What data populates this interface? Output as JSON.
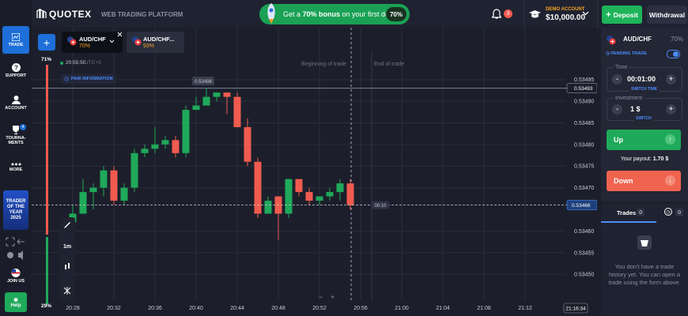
{
  "header": {
    "brand": "QUOTEX",
    "subtitle": "WEB TRADING PLATFORM",
    "promo_prefix": "Get a ",
    "promo_bold": "70% bonus",
    "promo_suffix": " on your first deposit!",
    "promo_badge": "70%",
    "notifications": "3",
    "account_label": "DEMO ACCOUNT",
    "balance": "$10,000.00",
    "deposit": "Deposit",
    "withdrawal": "Withdrawal"
  },
  "sidebar": {
    "trade": "TRADE",
    "support": "SUPPORT",
    "account": "ACCOUNT",
    "tournaments": "TOURNA-MENTS",
    "tournaments_badge": "4",
    "more": "MORE",
    "banner": "TRADER OF THE YEAR 2025",
    "join": "JOIN US",
    "help": "Help"
  },
  "tabs": [
    {
      "pair": "AUD/CHF",
      "payout": "70%"
    },
    {
      "pair": "AUD/CHF...",
      "payout": "93%"
    }
  ],
  "info": {
    "time": "20:55:50",
    "timezone": "UTC+3",
    "pair_information": "PAIR INFORMATION"
  },
  "sentiment": {
    "values": [
      71,
      29
    ],
    "value_labels": [
      "71%",
      "29%"
    ],
    "colors": [
      "#f05b4f",
      "#1fa95a"
    ]
  },
  "chart_data": {
    "type": "candlestick",
    "x": [
      "20:28",
      "20:29",
      "20:30",
      "20:31",
      "20:32",
      "20:33",
      "20:34",
      "20:35",
      "20:36",
      "20:37",
      "20:38",
      "20:39",
      "20:40",
      "20:41",
      "20:42",
      "20:43",
      "20:44",
      "20:45",
      "20:46",
      "20:47",
      "20:48",
      "20:49",
      "20:50",
      "20:51",
      "20:52",
      "20:53",
      "20:54",
      "20:55"
    ],
    "open": [
      0.53462,
      0.53464,
      0.53469,
      0.5347,
      0.53474,
      0.53467,
      0.5347,
      0.53478,
      0.53479,
      0.5348,
      0.53481,
      0.53478,
      0.53488,
      0.53489,
      0.53491,
      0.53492,
      0.53491,
      0.53484,
      0.53476,
      0.53464,
      0.53468,
      0.53464,
      0.53472,
      0.53469,
      0.53467,
      0.53468,
      0.53469,
      0.53471
    ],
    "high": [
      0.53466,
      0.53472,
      0.53471,
      0.53475,
      0.53475,
      0.53471,
      0.53479,
      0.5348,
      0.53484,
      0.53482,
      0.53482,
      0.53489,
      0.53491,
      0.53493,
      0.53492,
      0.53492,
      0.53492,
      0.53486,
      0.53477,
      0.53468,
      0.53468,
      0.53472,
      0.53472,
      0.5347,
      0.53468,
      0.5347,
      0.53472,
      0.53472
    ],
    "low": [
      0.53461,
      0.53464,
      0.53465,
      0.53468,
      0.53466,
      0.53466,
      0.53469,
      0.53477,
      0.53478,
      0.53479,
      0.53477,
      0.53477,
      0.53488,
      0.53489,
      0.5349,
      0.53487,
      0.53484,
      0.53475,
      0.53463,
      0.53464,
      0.53458,
      0.53463,
      0.53468,
      0.53466,
      0.53466,
      0.53467,
      0.53467,
      0.53465
    ],
    "close": [
      0.53464,
      0.53469,
      0.5347,
      0.53474,
      0.53467,
      0.5347,
      0.53478,
      0.53479,
      0.5348,
      0.53481,
      0.53478,
      0.53488,
      0.53489,
      0.53491,
      0.53492,
      0.53491,
      0.53484,
      0.53476,
      0.53464,
      0.53467,
      0.53464,
      0.53472,
      0.53469,
      0.53467,
      0.53468,
      0.53469,
      0.53471,
      0.53466
    ],
    "up_color": "#1fa95a",
    "down_color": "#f05b4f",
    "xlim": [
      "20:24",
      "21:19"
    ],
    "xticks": [
      "20:28",
      "20:32",
      "20:36",
      "20:40",
      "20:44",
      "20:48",
      "20:52",
      "20:56",
      "21:00",
      "21:04",
      "21:08",
      "21:12"
    ],
    "ylim": [
      0.53444,
      0.53507
    ],
    "yticks": [
      {
        "value": 0.5345,
        "label": "0.53450"
      },
      0.53455,
      {
        "value": 0.5346,
        "label": "0.53460"
      },
      {
        "value": 0.5347,
        "label": "0.53470"
      },
      0.53475,
      {
        "value": 0.5348,
        "label": "0.53480"
      },
      0.53485,
      {
        "value": 0.5349,
        "label": "0.53490"
      },
      0.53495
    ],
    "grid": true,
    "current_price": 0.53466,
    "alert_price": 0.53493,
    "crosshair_label": "0.53498",
    "timer": "00:10",
    "clock": "21:16:34",
    "trade_start": "Beginning of trade",
    "trade_end": "End of trade",
    "timeframe": "1m"
  },
  "trade_panel": {
    "pair": "AUD/CHF",
    "payout": "70%",
    "pending": "PENDING TRADE",
    "time_label": "Time",
    "time": "00:01:00",
    "switch_time": "SWITCH TIME",
    "investment_label": "Investment",
    "investment": "1 $",
    "switch": "SWITCH",
    "up": "Up",
    "payout_label": "Your payout:",
    "payout_value": "1.70 $",
    "down": "Down"
  },
  "trades": {
    "tab": "Trades",
    "count": "0",
    "pending_count": "0",
    "empty": "You don't have a trade history yet. You can open a trade using the form above."
  }
}
